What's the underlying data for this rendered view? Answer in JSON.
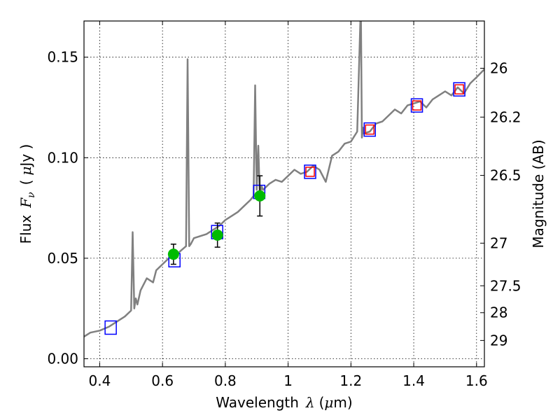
{
  "chart_data": {
    "type": "line",
    "xlabel": "Wavelength",
    "xlabel_symbol": "λ",
    "xlabel_unit_open": "(",
    "xlabel_unit_symbol": "μ",
    "xlabel_unit_rest": "m)",
    "ylabel": "Flux",
    "ylabel_symbol_main": "F",
    "ylabel_symbol_sub": "ν",
    "ylabel_unit_open": "(",
    "ylabel_unit_symbol": "μ",
    "ylabel_unit_rest": "Jy )",
    "y2label": "Magnitude (AB)",
    "xlim": [
      0.35,
      1.625
    ],
    "ylim": [
      -0.004,
      0.168
    ],
    "grid": true,
    "x_ticks": [
      0.4,
      0.6,
      0.8,
      1.0,
      1.2,
      1.4,
      1.6
    ],
    "x_tick_labels": [
      "0.4",
      "0.6",
      "0.8",
      "1",
      "1.2",
      "1.4",
      "1.6"
    ],
    "y_ticks": [
      0.0,
      0.05,
      0.1,
      0.15
    ],
    "y_tick_labels": [
      "0.00",
      "0.05",
      "0.10",
      "0.15"
    ],
    "y2_ticks": [
      {
        "label": "26",
        "flux": 0.1445
      },
      {
        "label": "26.2",
        "flux": 0.1202
      },
      {
        "label": "26.5",
        "flux": 0.0912
      },
      {
        "label": "27",
        "flux": 0.0575
      },
      {
        "label": "27.5",
        "flux": 0.0363
      },
      {
        "label": "28",
        "flux": 0.0229
      },
      {
        "label": "29",
        "flux": 0.0091
      }
    ],
    "series": [
      {
        "style": "line",
        "color": "#808080",
        "x": [
          0.35,
          0.37,
          0.4,
          0.43,
          0.46,
          0.48,
          0.5,
          0.505,
          0.51,
          0.515,
          0.52,
          0.53,
          0.55,
          0.57,
          0.58,
          0.6,
          0.62,
          0.64,
          0.66,
          0.675,
          0.68,
          0.685,
          0.69,
          0.7,
          0.72,
          0.74,
          0.76,
          0.78,
          0.8,
          0.82,
          0.84,
          0.86,
          0.88,
          0.89,
          0.895,
          0.9,
          0.905,
          0.91,
          0.915,
          0.92,
          0.94,
          0.96,
          0.98,
          1.0,
          1.02,
          1.04,
          1.06,
          1.08,
          1.1,
          1.12,
          1.14,
          1.16,
          1.17,
          1.18,
          1.2,
          1.22,
          1.23,
          1.232,
          1.235,
          1.238,
          1.24,
          1.26,
          1.28,
          1.3,
          1.32,
          1.34,
          1.36,
          1.38,
          1.4,
          1.42,
          1.44,
          1.46,
          1.48,
          1.5,
          1.52,
          1.54,
          1.56,
          1.58,
          1.6,
          1.625
        ],
        "y": [
          0.011,
          0.013,
          0.014,
          0.016,
          0.019,
          0.021,
          0.024,
          0.063,
          0.025,
          0.03,
          0.027,
          0.034,
          0.04,
          0.038,
          0.044,
          0.047,
          0.05,
          0.051,
          0.054,
          0.056,
          0.149,
          0.056,
          0.057,
          0.06,
          0.061,
          0.062,
          0.064,
          0.066,
          0.069,
          0.071,
          0.073,
          0.076,
          0.079,
          0.081,
          0.136,
          0.084,
          0.106,
          0.08,
          0.086,
          0.084,
          0.087,
          0.089,
          0.088,
          0.091,
          0.094,
          0.092,
          0.093,
          0.096,
          0.094,
          0.088,
          0.101,
          0.103,
          0.105,
          0.107,
          0.108,
          0.113,
          0.168,
          0.168,
          0.11,
          0.115,
          0.112,
          0.113,
          0.117,
          0.118,
          0.121,
          0.124,
          0.122,
          0.126,
          0.127,
          0.128,
          0.125,
          0.129,
          0.131,
          0.133,
          0.131,
          0.135,
          0.132,
          0.137,
          0.14,
          0.144
        ]
      },
      {
        "style": "open-square",
        "color": "#0000ff",
        "x": [
          0.435,
          0.638,
          0.774,
          0.908,
          1.07,
          1.26,
          1.41,
          1.545
        ],
        "y": [
          0.0155,
          0.049,
          0.063,
          0.083,
          0.093,
          0.114,
          0.126,
          0.134
        ]
      },
      {
        "style": "open-square",
        "color": "#ff0000",
        "x": [
          1.07,
          1.26,
          1.41,
          1.545
        ],
        "y": [
          0.093,
          0.114,
          0.126,
          0.134
        ]
      },
      {
        "style": "filled-circle",
        "color": "#00bb00",
        "x": [
          0.635,
          0.775,
          0.91
        ],
        "y": [
          0.052,
          0.0615,
          0.081
        ],
        "yerr": [
          0.005,
          0.006,
          0.01
        ]
      }
    ]
  }
}
